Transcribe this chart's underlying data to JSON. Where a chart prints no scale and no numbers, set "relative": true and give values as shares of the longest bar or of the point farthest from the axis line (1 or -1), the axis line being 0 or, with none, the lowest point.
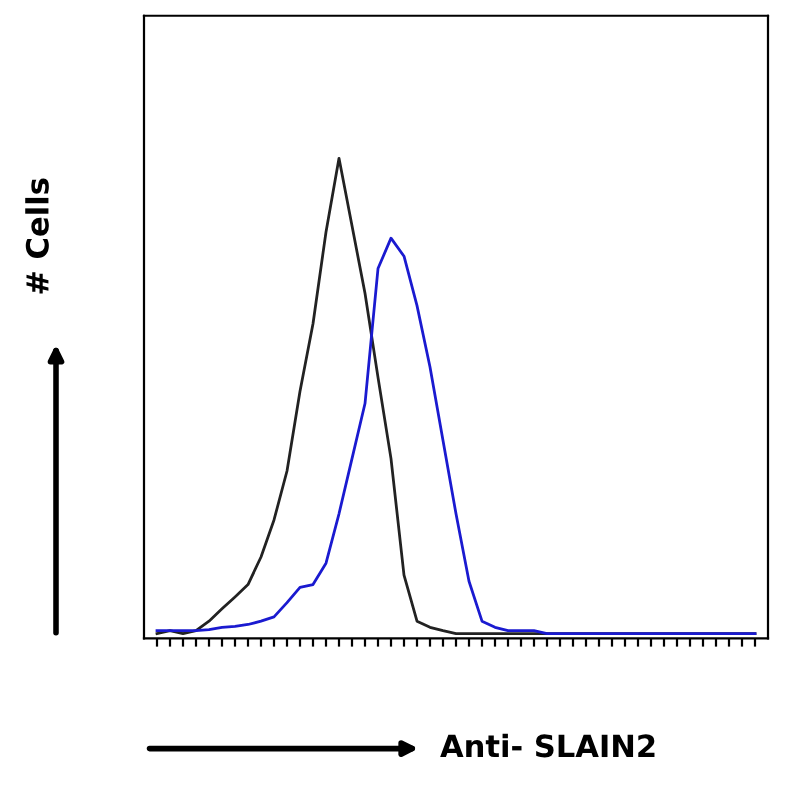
{
  "chart_data": {
    "type": "line",
    "relative": true,
    "xlabel": "Anti- SLAIN2",
    "ylabel": "# Cells",
    "grid": false,
    "legend": false,
    "marker": "none",
    "line_style": "solid",
    "categories": [
      null,
      null,
      null,
      null,
      null,
      null,
      null,
      null,
      null,
      null,
      null,
      null,
      null,
      null,
      null,
      null,
      null,
      null,
      null,
      null,
      null,
      null,
      null,
      null,
      null,
      null,
      null,
      null,
      null,
      null,
      null,
      null,
      null,
      null,
      null,
      null,
      null,
      null,
      null,
      null,
      null,
      null,
      null,
      null,
      null,
      null,
      null
    ],
    "series": [
      {
        "color": "#222222",
        "values": [
          0,
          0.006,
          0,
          0.006,
          0.026,
          0.052,
          0.077,
          0.103,
          0.161,
          0.239,
          0.342,
          0.51,
          0.652,
          0.845,
          1.0,
          0.858,
          0.716,
          0.539,
          0.368,
          0.123,
          0.026,
          0.013,
          0.006,
          0,
          0,
          0,
          0,
          0,
          0,
          0,
          0,
          0,
          0,
          0,
          0,
          0,
          0,
          0,
          0,
          0,
          0,
          0,
          0,
          0,
          0,
          0,
          0
        ]
      },
      {
        "color": "#1a1ad0",
        "values": [
          0.006,
          0.006,
          0.006,
          0.006,
          0.008,
          0.013,
          0.015,
          0.019,
          0.026,
          0.035,
          0.065,
          0.097,
          0.103,
          0.148,
          0.252,
          0.368,
          0.484,
          0.768,
          0.832,
          0.794,
          0.69,
          0.561,
          0.406,
          0.252,
          0.11,
          0.026,
          0.013,
          0.006,
          0.006,
          0.006,
          0,
          0,
          0,
          0,
          0,
          0,
          0,
          0,
          0,
          0,
          0,
          0,
          0,
          0,
          0,
          0,
          0
        ]
      }
    ]
  }
}
